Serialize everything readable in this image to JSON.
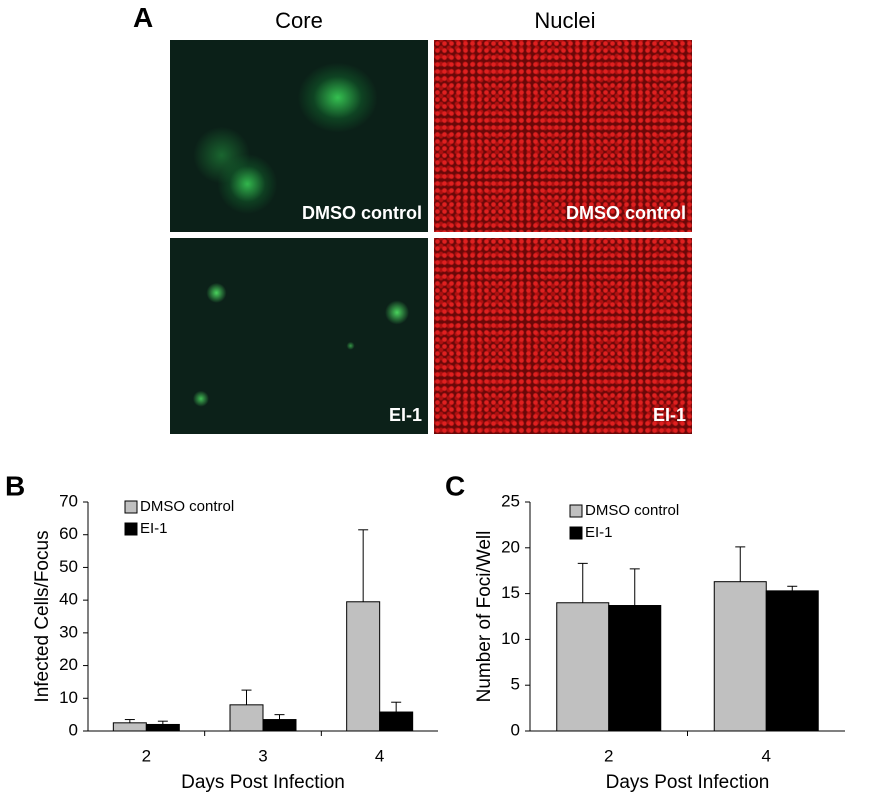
{
  "panel_a": {
    "label": "A",
    "columns": [
      "Core",
      "Nuclei"
    ],
    "images": [
      [
        "DMSO control",
        "DMSO control"
      ],
      [
        "EI-1",
        "EI-1"
      ]
    ]
  },
  "chart_data": [
    {
      "type": "bar",
      "panel": "B",
      "x_label": "Days Post Infection",
      "y_label": "Infected Cells/Focus",
      "categories": [
        "2",
        "3",
        "4"
      ],
      "series": [
        {
          "name": "DMSO control",
          "color": "#c0c0c0",
          "values": [
            2.5,
            8,
            39.5
          ],
          "errors": [
            1,
            4.5,
            22
          ]
        },
        {
          "name": "EI-1",
          "color": "#000000",
          "values": [
            2,
            3.5,
            5.8
          ],
          "errors": [
            1,
            1.5,
            3
          ]
        }
      ],
      "ylim": [
        0,
        70
      ],
      "yticks": [
        0,
        10,
        20,
        30,
        40,
        50,
        60,
        70
      ]
    },
    {
      "type": "bar",
      "panel": "C",
      "x_label": "Days Post Infection",
      "y_label": "Number of Foci/Well",
      "categories": [
        "2",
        "4"
      ],
      "series": [
        {
          "name": "DMSO control",
          "color": "#c0c0c0",
          "values": [
            14,
            16.3
          ],
          "errors": [
            4.3,
            3.8
          ]
        },
        {
          "name": "EI-1",
          "color": "#000000",
          "values": [
            13.7,
            15.3
          ],
          "errors": [
            4,
            0.5
          ]
        }
      ],
      "ylim": [
        0,
        25
      ],
      "yticks": [
        0,
        5,
        10,
        15,
        20,
        25
      ]
    }
  ]
}
